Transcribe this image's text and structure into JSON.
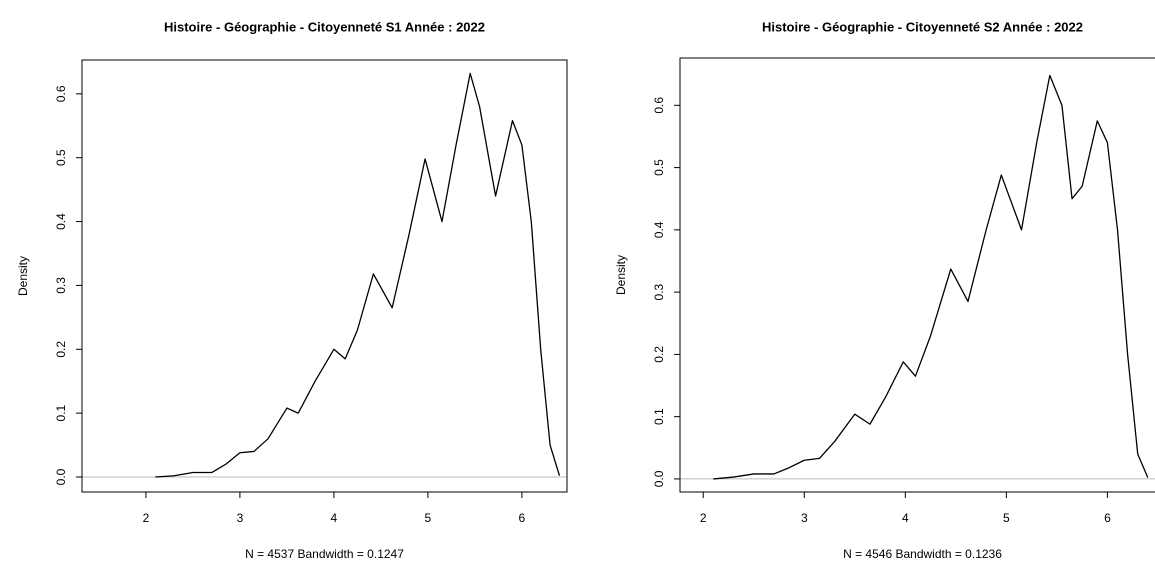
{
  "chart_data": [
    {
      "type": "line",
      "title": "Histoire - Géographie - Citoyenneté S1 Année : 2022",
      "xlabel": "N = 4537   Bandwidth = 0.1247",
      "ylabel": "Density",
      "color": "#000000",
      "x": [
        2.1,
        2.3,
        2.5,
        2.7,
        2.85,
        3.0,
        3.15,
        3.3,
        3.5,
        3.62,
        3.8,
        4.0,
        4.12,
        4.25,
        4.42,
        4.62,
        4.8,
        4.97,
        5.15,
        5.3,
        5.45,
        5.55,
        5.72,
        5.9,
        6.0,
        6.1,
        6.2,
        6.3,
        6.4
      ],
      "values": [
        0.0,
        0.002,
        0.007,
        0.007,
        0.02,
        0.038,
        0.04,
        0.06,
        0.108,
        0.1,
        0.15,
        0.2,
        0.185,
        0.23,
        0.318,
        0.265,
        0.38,
        0.498,
        0.4,
        0.52,
        0.632,
        0.58,
        0.44,
        0.558,
        0.52,
        0.4,
        0.2,
        0.05,
        0.002
      ],
      "xlim": [
        1.32,
        6.48
      ],
      "ylim": [
        -0.0235,
        0.653
      ],
      "xticks": [
        2,
        3,
        4,
        5,
        6
      ],
      "yticks": [
        {
          "value": 0,
          "label": "0.0"
        },
        0.1,
        0.2,
        0.3,
        0.4,
        0.5,
        0.6
      ]
    },
    {
      "type": "line",
      "title": "Histoire - Géographie - Citoyenneté S2 Année : 2022",
      "xlabel": "N = 4546   Bandwidth = 0.1236",
      "ylabel": "Density",
      "color": "#000000",
      "x": [
        2.1,
        2.3,
        2.5,
        2.7,
        2.85,
        3.0,
        3.15,
        3.3,
        3.5,
        3.65,
        3.8,
        3.98,
        4.1,
        4.25,
        4.45,
        4.62,
        4.8,
        4.95,
        5.15,
        5.3,
        5.43,
        5.55,
        5.65,
        5.75,
        5.9,
        6.0,
        6.1,
        6.2,
        6.3,
        6.4
      ],
      "values": [
        0.0,
        0.003,
        0.008,
        0.008,
        0.018,
        0.03,
        0.033,
        0.06,
        0.104,
        0.088,
        0.13,
        0.188,
        0.165,
        0.23,
        0.337,
        0.285,
        0.4,
        0.488,
        0.4,
        0.54,
        0.648,
        0.6,
        0.45,
        0.47,
        0.575,
        0.54,
        0.4,
        0.2,
        0.04,
        0.002
      ],
      "xlim": [
        1.77,
        6.57
      ],
      "ylim": [
        -0.021,
        0.676
      ],
      "xticks": [
        2,
        3,
        4,
        5,
        6
      ],
      "yticks": [
        {
          "value": 0,
          "label": "0.0"
        },
        0.1,
        0.2,
        0.3,
        0.4,
        0.5,
        0.6
      ]
    }
  ]
}
